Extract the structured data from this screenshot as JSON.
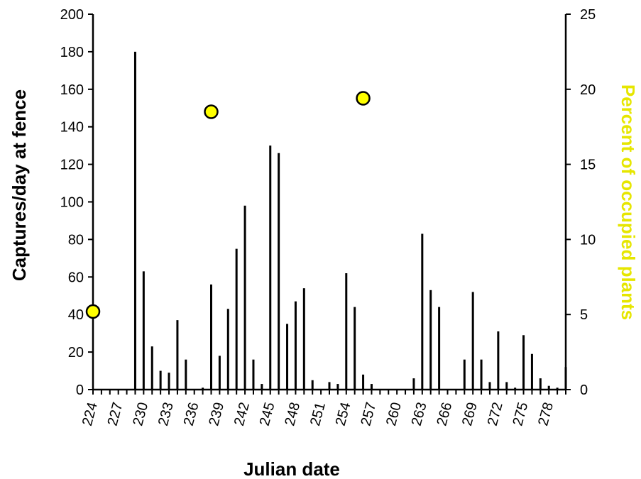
{
  "chart_data": {
    "type": "bar",
    "xlabel": "Julian date",
    "ylabel": "Captures/day at fence",
    "y2label": "Percent of occupied plants",
    "colors": {
      "bars": "#000000",
      "markers": "#ffff00",
      "y2label": "#e6e600",
      "axis": "#000000"
    },
    "xlim": [
      224,
      280
    ],
    "ylim": [
      0,
      200
    ],
    "y2lim": [
      0,
      25
    ],
    "x_tick_labels": [
      "224",
      "227",
      "230",
      "233",
      "236",
      "239",
      "242",
      "245",
      "248",
      "251",
      "254",
      "257",
      "260",
      "263",
      "266",
      "269",
      "272",
      "275",
      "278"
    ],
    "y_ticks": [
      0,
      20,
      40,
      60,
      80,
      100,
      120,
      140,
      160,
      180,
      200
    ],
    "y2_ticks": [
      0,
      5,
      10,
      15,
      20,
      25
    ],
    "grid": false,
    "series": [
      {
        "type": "bar",
        "axis": "left",
        "x": [
          229,
          230,
          231,
          232,
          233,
          234,
          235,
          237,
          238,
          239,
          240,
          241,
          242,
          243,
          244,
          245,
          246,
          247,
          248,
          249,
          250,
          252,
          253,
          254,
          255,
          256,
          257,
          262,
          263,
          264,
          265,
          268,
          269,
          270,
          271,
          272,
          273,
          274,
          275,
          276,
          277,
          278,
          279,
          280
        ],
        "values": [
          180,
          63,
          23,
          10,
          9,
          37,
          16,
          1,
          56,
          18,
          43,
          75,
          98,
          16,
          3,
          130,
          126,
          35,
          47,
          54,
          5,
          4,
          3,
          62,
          44,
          8,
          3,
          6,
          83,
          53,
          44,
          16,
          52,
          16,
          4,
          31,
          4,
          1,
          29,
          19,
          6,
          2,
          1,
          12
        ]
      },
      {
        "type": "scatter",
        "axis": "right",
        "x": [
          224,
          238,
          256
        ],
        "values": [
          5.2,
          18.5,
          19.4
        ]
      }
    ]
  }
}
